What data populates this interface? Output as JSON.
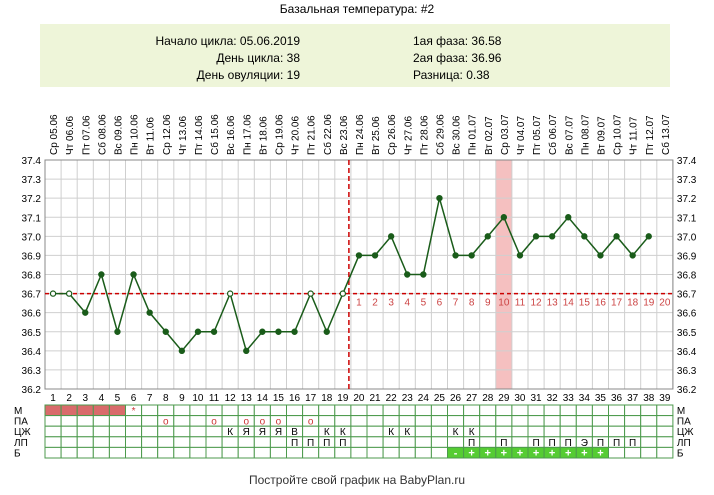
{
  "title": "Базальная температура: #2",
  "info": {
    "cycle_start": "Начало цикла: 05.06.2019",
    "cycle_day": "День цикла: 38",
    "ovulation_day": "День овуляции: 19",
    "phase1": "1ая фаза: 36.58",
    "phase2": "2ая фаза: 36.96",
    "difference": "Разница: 0.38"
  },
  "footer": "Постройте свой график на BabyPlan.ru",
  "colors": {
    "line": "#1a5c1a",
    "coverline": "#cc0000",
    "highlight": "#f5c0c0",
    "menses": "#d96b6b",
    "b_cell": "#55cc33",
    "grid": "#cfcfcf",
    "info_bg": "#eef5d9"
  },
  "moon_icon_day": 16,
  "chart_data": {
    "type": "line",
    "dates": [
      "Ср 05.06",
      "Чт 06.06",
      "Пт 07.06",
      "Сб 08.06",
      "Вс 09.06",
      "Пн 10.06",
      "Вт 11.06",
      "Ср 12.06",
      "Чт 13.06",
      "Пт 14.06",
      "Сб 15.06",
      "Вс 16.06",
      "Пн 17.06",
      "Вт 18.06",
      "Ср 19.06",
      "Чт 20.06",
      "Пт 21.06",
      "Сб 22.06",
      "Вс 23.06",
      "Пн 24.06",
      "Вт 25.06",
      "Ср 26.06",
      "Чт 27.06",
      "Пт 28.06",
      "Сб 29.06",
      "Вс 30.06",
      "Пн 01.07",
      "Вт 02.07",
      "Ср 03.07",
      "Чт 04.07",
      "Пт 05.07",
      "Сб 06.07",
      "Вс 07.07",
      "Пн 08.07",
      "Вт 09.07",
      "Ср 10.07",
      "Чт 11.07",
      "Пт 12.07",
      "Сб 13.07"
    ],
    "days": [
      1,
      2,
      3,
      4,
      5,
      6,
      7,
      8,
      9,
      10,
      11,
      12,
      13,
      14,
      15,
      16,
      17,
      18,
      19,
      20,
      21,
      22,
      23,
      24,
      25,
      26,
      27,
      28,
      29,
      30,
      31,
      32,
      33,
      34,
      35,
      36,
      37,
      38,
      39
    ],
    "temperatures": [
      36.7,
      36.7,
      36.6,
      36.8,
      36.5,
      36.8,
      36.6,
      36.5,
      36.4,
      36.5,
      36.5,
      36.7,
      36.4,
      36.5,
      36.5,
      36.5,
      36.7,
      36.5,
      36.7,
      36.9,
      36.9,
      37.0,
      36.8,
      36.8,
      37.2,
      36.9,
      36.9,
      37.0,
      37.1,
      36.9,
      37.0,
      37.0,
      37.1,
      37.0,
      36.9,
      37.0,
      36.9,
      37.0
    ],
    "y_ticks": [
      "36.2",
      "36.3",
      "36.4",
      "36.5",
      "36.6",
      "36.7",
      "36.8",
      "36.9",
      "37.0",
      "37.1",
      "37.2",
      "37.3",
      "37.4"
    ],
    "ylim": [
      36.2,
      37.4
    ],
    "coverline": 36.7,
    "ovulation_day": 19,
    "highlight_day": 29,
    "phase2_numbers": [
      "1",
      "2",
      "3",
      "4",
      "5",
      "6",
      "7",
      "8",
      "9",
      "10",
      "11",
      "12",
      "13",
      "14",
      "15",
      "16",
      "17",
      "18",
      "19",
      "20"
    ],
    "grid": true
  },
  "rows": {
    "labels": [
      "М",
      "ПА",
      "ЦЖ",
      "ЛП",
      "Б"
    ],
    "m_filled_days": [
      1,
      2,
      3,
      4,
      5
    ],
    "m_marks": {
      "6": "*"
    },
    "pa_marks": {
      "8": "о",
      "11": "о",
      "13": "о",
      "14": "о",
      "15": "о",
      "17": "о"
    },
    "czh_marks": {
      "12": "К",
      "13": "Я",
      "14": "Я",
      "15": "Я",
      "16": "В",
      "18": "К",
      "19": "К",
      "22": "К",
      "23": "К",
      "26": "К",
      "27": "К"
    },
    "lp_marks": {
      "16": "П",
      "17": "П",
      "18": "П",
      "19": "П",
      "27": "П",
      "29": "П",
      "31": "П",
      "32": "П",
      "33": "П",
      "34": "Э",
      "35": "П",
      "36": "П",
      "37": "П"
    },
    "b_marks": {
      "26": "-",
      "27": "+",
      "28": "+",
      "29": "+",
      "30": "+",
      "31": "+",
      "32": "+",
      "33": "+",
      "34": "+",
      "35": "+"
    }
  }
}
